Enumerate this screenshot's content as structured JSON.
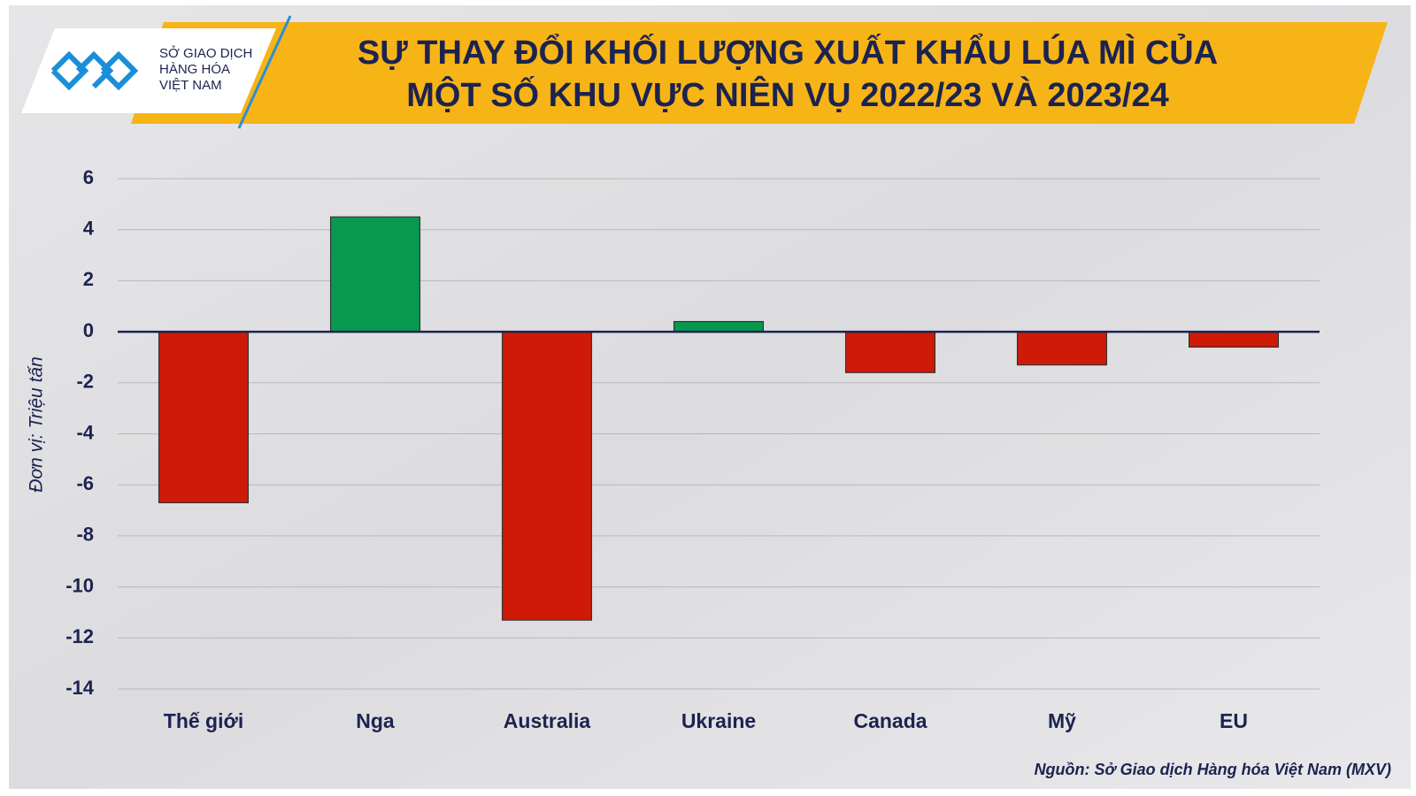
{
  "logo": [
    "SỞ GIAO DỊCH",
    "HÀNG HÓA",
    "VIỆT NAM"
  ],
  "chart_data": {
    "type": "bar",
    "title": [
      "SỰ THAY ĐỔI KHỐI LƯỢNG XUẤT KHẨU LÚA MÌ CỦA",
      "MỘT SỐ KHU VỰC NIÊN VỤ 2022/23 VÀ 2023/24"
    ],
    "y_label": "Đơn vị: Triệu tấn",
    "categories": [
      "Thế giới",
      "Nga",
      "Australia",
      "Ukraine",
      "Canada",
      "Mỹ",
      "EU"
    ],
    "values": [
      -6.7,
      4.5,
      -11.3,
      0.4,
      -1.6,
      -1.3,
      -0.6
    ],
    "colors": [
      "#d01a08",
      "#08994f",
      "#d01a08",
      "#08994f",
      "#d01a08",
      "#d01a08",
      "#d01a08"
    ],
    "ylim": [
      -14,
      6
    ],
    "yticks": [
      -14,
      -12,
      -10,
      -8,
      -6,
      -4,
      -2,
      0,
      2,
      4,
      6
    ],
    "grid": true,
    "source": "Nguồn: Sở Giao dịch Hàng hóa Việt Nam (MXV)"
  }
}
